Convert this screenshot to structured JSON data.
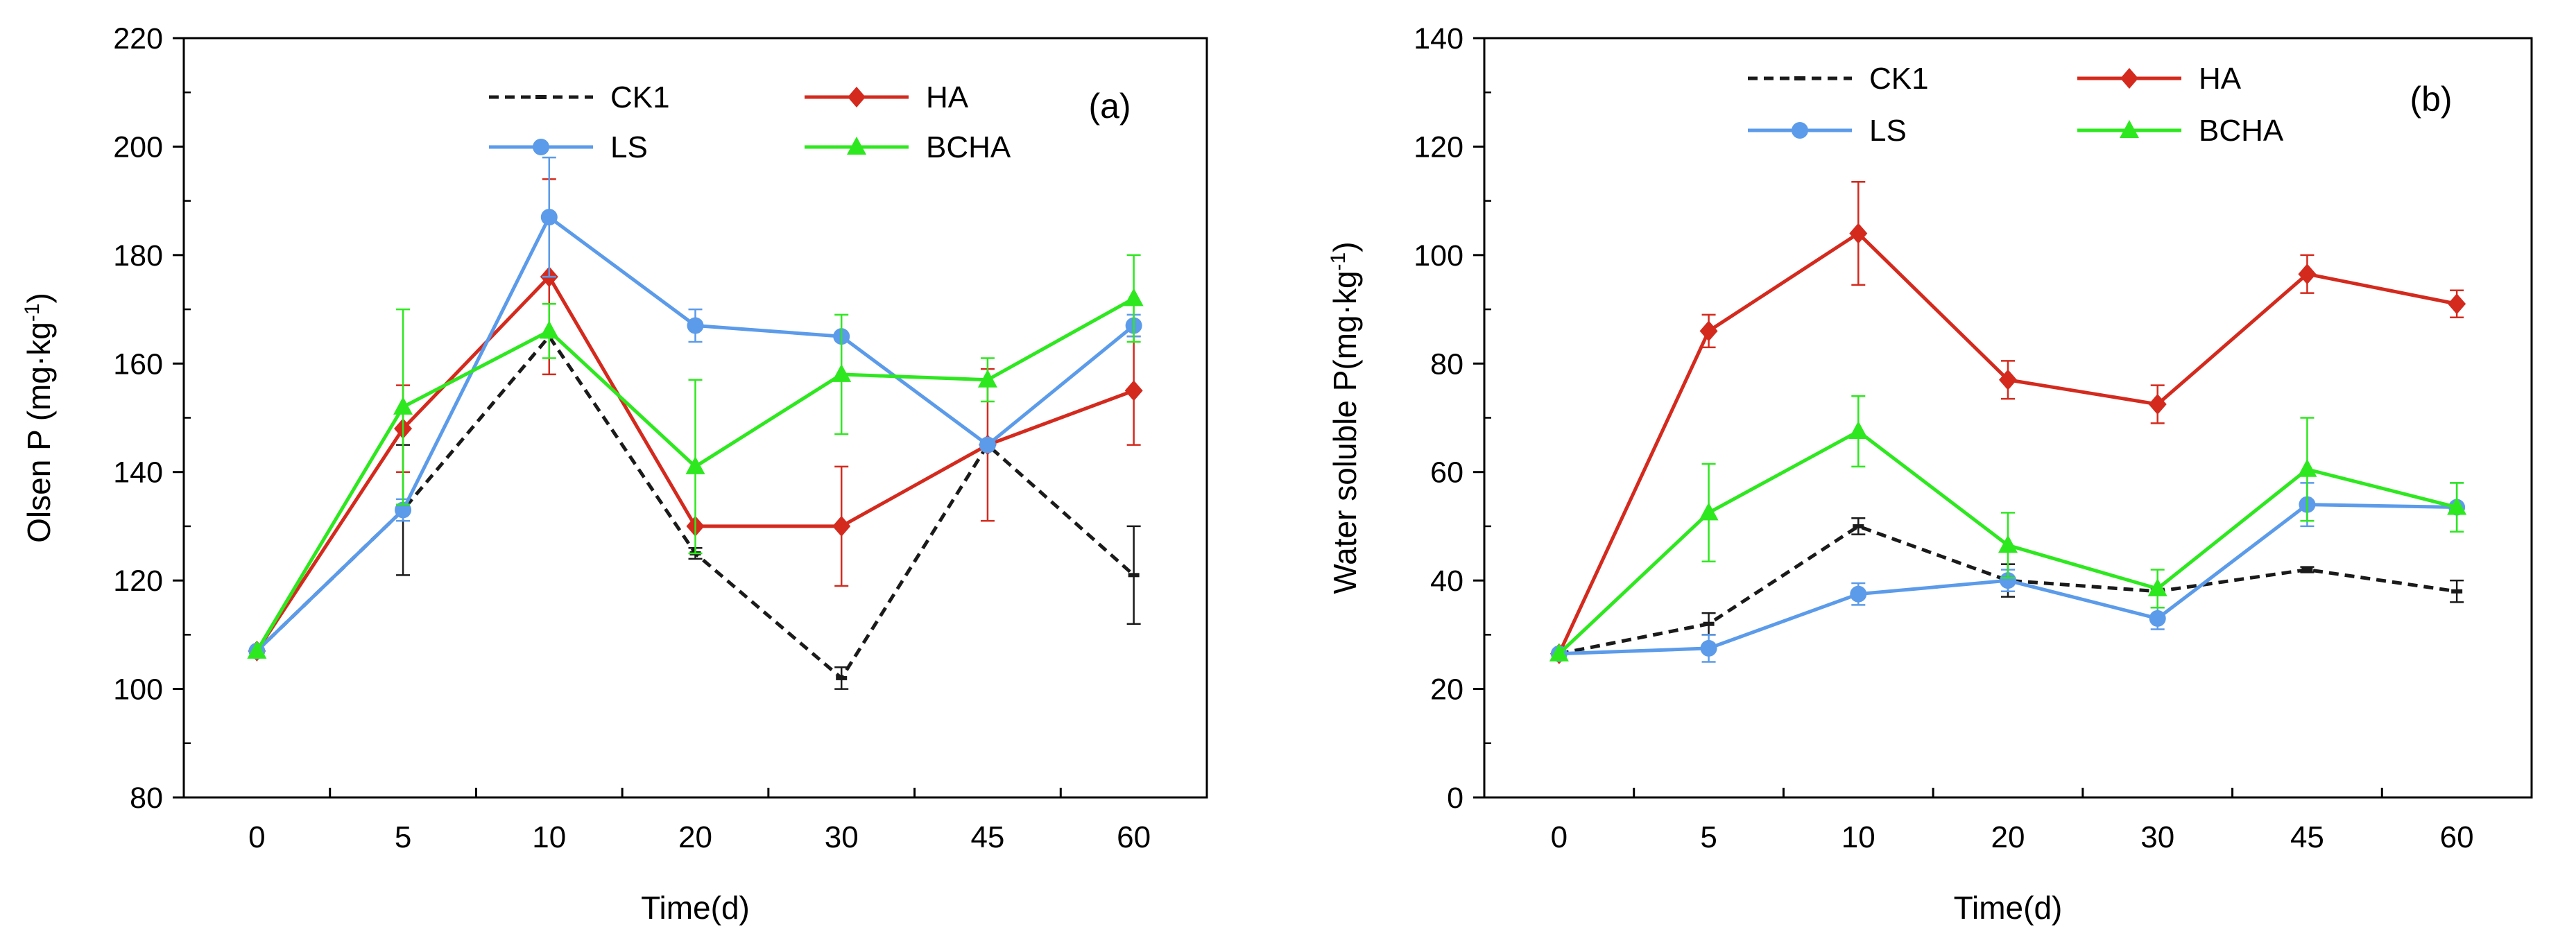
{
  "chart_data": [
    {
      "type": "line",
      "panel_label": "(a)",
      "xlabel": "Time(d)",
      "ylabel_main": "Olsen P (mg·kg",
      "ylabel_sup": "-1",
      "ylabel_close": ")",
      "categories": [
        "0",
        "5",
        "10",
        "20",
        "30",
        "45",
        "60"
      ],
      "ylim": [
        80,
        220
      ],
      "yticks": [
        80,
        100,
        120,
        140,
        160,
        180,
        200,
        220
      ],
      "legend_position": "top",
      "series": [
        {
          "name": "CK1",
          "color": "#1a1a1a",
          "dashed": true,
          "marker": "dash",
          "values": [
            107,
            133,
            165,
            125,
            102,
            145,
            121
          ],
          "errors": [
            0,
            12,
            0,
            1,
            2,
            0,
            9
          ]
        },
        {
          "name": "HA",
          "color": "#d42a1e",
          "dashed": false,
          "marker": "diamond",
          "values": [
            107,
            148,
            176,
            130,
            130,
            145,
            155
          ],
          "errors": [
            0,
            8,
            18,
            0,
            11,
            14,
            10
          ]
        },
        {
          "name": "LS",
          "color": "#5b9bea",
          "dashed": false,
          "marker": "circle",
          "values": [
            107,
            133,
            187,
            167,
            165,
            145,
            167
          ],
          "errors": [
            0,
            2,
            11,
            3,
            0,
            0,
            2
          ]
        },
        {
          "name": "BCHA",
          "color": "#2ee81f",
          "dashed": false,
          "marker": "triangle",
          "values": [
            107,
            152,
            166,
            141,
            158,
            157,
            172
          ],
          "errors": [
            0,
            18,
            5,
            16,
            11,
            4,
            8
          ]
        }
      ]
    },
    {
      "type": "line",
      "panel_label": "(b)",
      "xlabel": "Time(d)",
      "ylabel_main": "Water soluble P(mg·kg",
      "ylabel_sup": "-1",
      "ylabel_close": ")",
      "categories": [
        "0",
        "5",
        "10",
        "20",
        "30",
        "45",
        "60"
      ],
      "ylim": [
        0,
        140
      ],
      "yticks": [
        0,
        20,
        40,
        60,
        80,
        100,
        120,
        140
      ],
      "legend_position": "top",
      "series": [
        {
          "name": "CK1",
          "color": "#1a1a1a",
          "dashed": true,
          "marker": "dash",
          "values": [
            26.5,
            32,
            50,
            40,
            38,
            42,
            38
          ],
          "errors": [
            0,
            2,
            1.5,
            3,
            0.5,
            0.5,
            2
          ]
        },
        {
          "name": "HA",
          "color": "#d42a1e",
          "dashed": false,
          "marker": "diamond",
          "values": [
            26.5,
            86,
            104,
            77,
            72.5,
            96.5,
            91
          ],
          "errors": [
            0,
            3,
            9.5,
            3.5,
            3.5,
            3.5,
            2.5
          ]
        },
        {
          "name": "LS",
          "color": "#5b9bea",
          "dashed": false,
          "marker": "circle",
          "values": [
            26.5,
            27.5,
            37.5,
            40,
            33,
            54,
            53.5
          ],
          "errors": [
            0,
            2.5,
            2,
            2,
            2,
            4,
            4.5
          ]
        },
        {
          "name": "BCHA",
          "color": "#2ee81f",
          "dashed": false,
          "marker": "triangle",
          "values": [
            26.5,
            52.5,
            67.5,
            46.5,
            38.5,
            60.5,
            53.5
          ],
          "errors": [
            0,
            9,
            6.5,
            6,
            3.5,
            9.5,
            4.5
          ]
        }
      ]
    }
  ]
}
